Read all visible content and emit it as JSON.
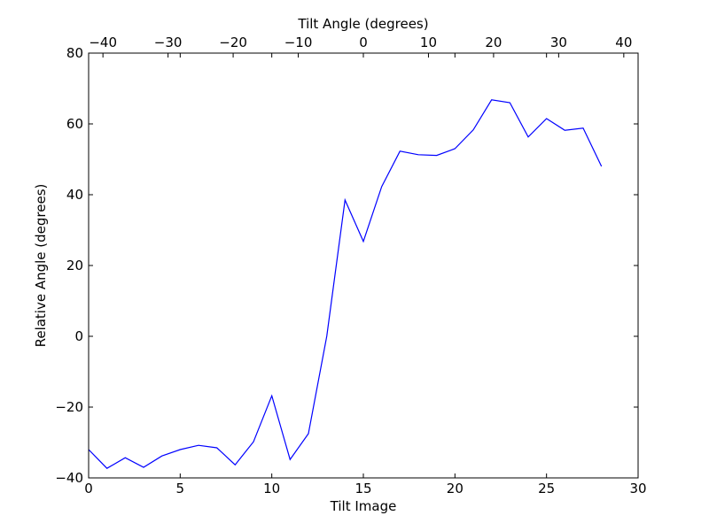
{
  "chart_data": {
    "type": "line",
    "title": "",
    "xlabel": "Tilt Image",
    "ylabel": "Relative Angle (degrees)",
    "x2label": "Tilt Angle (degrees)",
    "xlim": [
      0,
      30
    ],
    "ylim": [
      -40,
      80
    ],
    "x2lim": [
      -42.2,
      42.2
    ],
    "xticks": [
      0,
      5,
      10,
      15,
      20,
      25,
      30
    ],
    "yticks": [
      -40,
      -20,
      0,
      20,
      40,
      60,
      80
    ],
    "x2ticks": [
      -40,
      -30,
      -20,
      -10,
      0,
      10,
      20,
      30,
      40
    ],
    "xtick_labels": [
      "0",
      "5",
      "10",
      "15",
      "20",
      "25",
      "30"
    ],
    "ytick_labels": [
      "−40",
      "−20",
      "0",
      "20",
      "40",
      "60",
      "80"
    ],
    "x2tick_labels": [
      "−40",
      "−30",
      "−20",
      "−10",
      "0",
      "10",
      "20",
      "30",
      "40"
    ],
    "grid": false,
    "line_color": "#0000ff",
    "series": [
      {
        "x": [
          0,
          1,
          2,
          3,
          4,
          5,
          6,
          7,
          8,
          9,
          10,
          11,
          12,
          13,
          14,
          15,
          16,
          17,
          18,
          19,
          20,
          21,
          22,
          23,
          24,
          25,
          26,
          27,
          28
        ],
        "values": [
          -32.0,
          -37.3,
          -34.3,
          -37.0,
          -33.8,
          -32.0,
          -30.8,
          -31.5,
          -36.3,
          -29.8,
          -16.8,
          -34.8,
          -27.5,
          0.0,
          38.5,
          26.8,
          42.3,
          52.3,
          51.3,
          51.1,
          53.0,
          58.3,
          66.8,
          66.0,
          56.3,
          61.5,
          58.2,
          58.8,
          48.0
        ]
      }
    ]
  }
}
